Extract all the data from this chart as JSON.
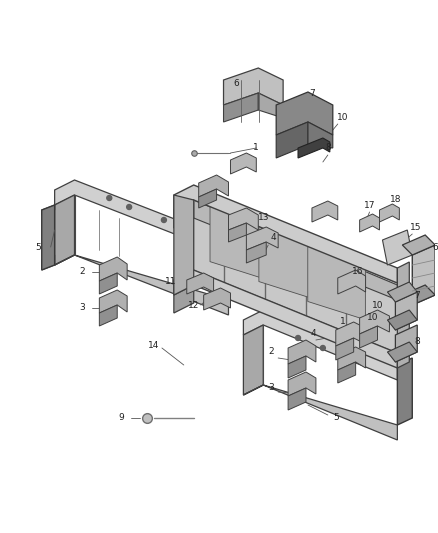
{
  "bg_color": "#ffffff",
  "fig_width": 4.38,
  "fig_height": 5.33,
  "dpi": 100,
  "line_col": "#555555",
  "face_light": "#d8d8d8",
  "face_mid": "#b8b8b8",
  "face_dark": "#909090",
  "face_darker": "#707070",
  "edge_col": "#444444"
}
